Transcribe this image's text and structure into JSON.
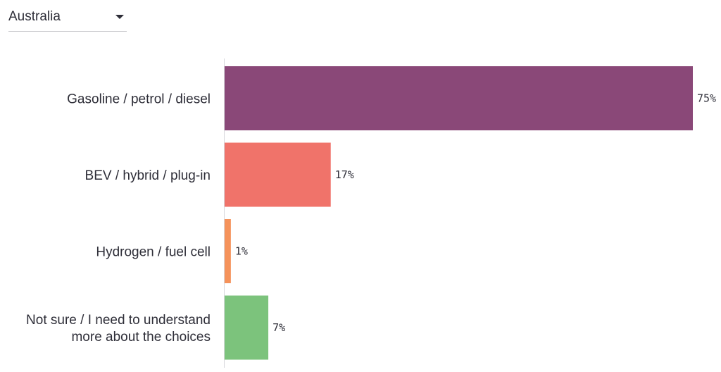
{
  "country_select": {
    "value": "Australia"
  },
  "chart_data": {
    "type": "bar",
    "orientation": "horizontal",
    "categories": [
      [
        "Gasoline / petrol / diesel"
      ],
      [
        "BEV / hybrid / plug-in"
      ],
      [
        "Hydrogen / fuel cell"
      ],
      [
        "Not sure / I need to understand",
        "more about the choices"
      ]
    ],
    "values": [
      75,
      17,
      1,
      7
    ],
    "value_labels": [
      "75%",
      "17%",
      "1%",
      "7%"
    ],
    "colors": [
      "#8a4878",
      "#f0736a",
      "#f5925a",
      "#7cc37c"
    ],
    "unit": "%",
    "xlim": [
      0,
      75
    ],
    "grid": false,
    "legend": "none"
  }
}
